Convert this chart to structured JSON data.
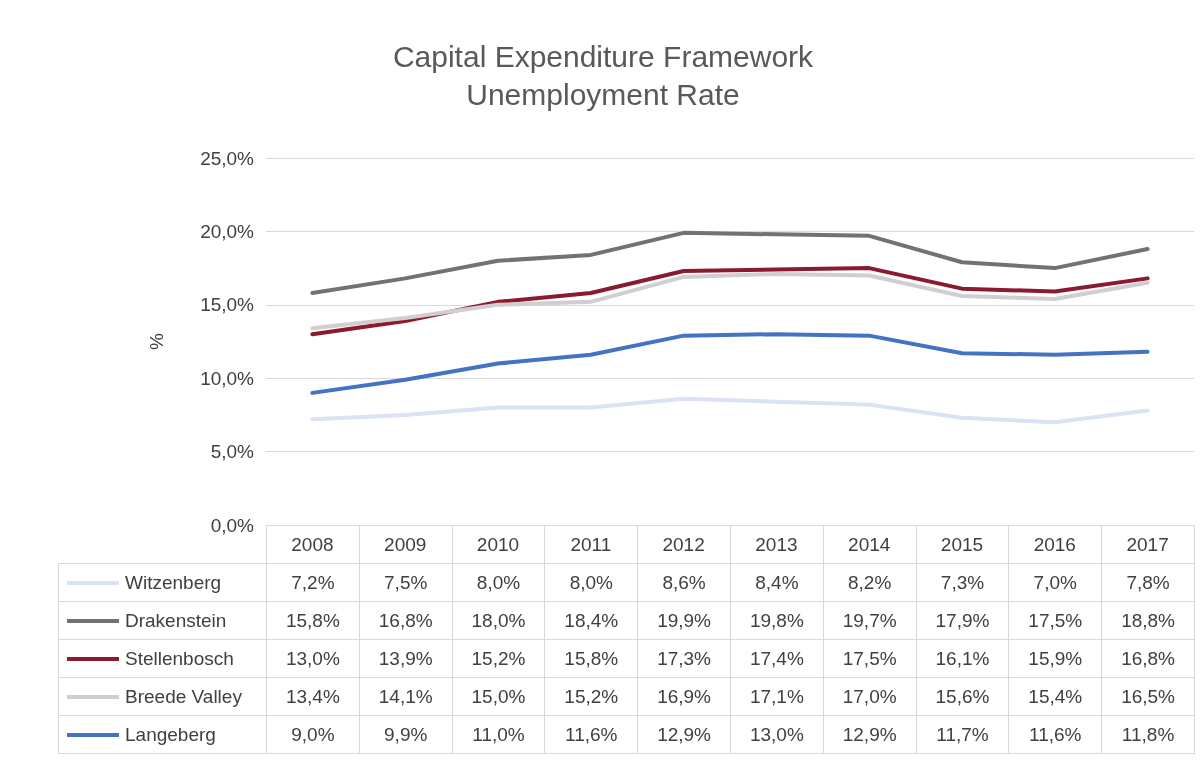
{
  "chart_data": {
    "type": "line",
    "title": "Capital Expenditure Framework",
    "subtitle": "Unemployment Rate",
    "ylabel": "%",
    "categories": [
      "2008",
      "2009",
      "2010",
      "2011",
      "2012",
      "2013",
      "2014",
      "2015",
      "2016",
      "2017"
    ],
    "ylim": [
      0,
      25
    ],
    "yticks": [
      {
        "value": 0,
        "label": "0,0%"
      },
      {
        "value": 5,
        "label": "5,0%"
      },
      {
        "value": 10,
        "label": "10,0%"
      },
      {
        "value": 15,
        "label": "15,0%"
      },
      {
        "value": 20,
        "label": "20,0%"
      },
      {
        "value": 25,
        "label": "25,0%"
      }
    ],
    "grid": "y",
    "legend": "bottom",
    "series": [
      {
        "name": "Witzenberg",
        "color": "#dae3f3",
        "values": [
          7.2,
          7.5,
          8.0,
          8.0,
          8.6,
          8.4,
          8.2,
          7.3,
          7.0,
          7.8
        ],
        "value_labels": [
          "7,2%",
          "7,5%",
          "8,0%",
          "8,0%",
          "8,6%",
          "8,4%",
          "8,2%",
          "7,3%",
          "7,0%",
          "7,8%"
        ]
      },
      {
        "name": "Drakenstein",
        "color": "#767171",
        "values": [
          15.8,
          16.8,
          18.0,
          18.4,
          19.9,
          19.8,
          19.7,
          17.9,
          17.5,
          18.8
        ],
        "value_labels": [
          "15,8%",
          "16,8%",
          "18,0%",
          "18,4%",
          "19,9%",
          "19,8%",
          "19,7%",
          "17,9%",
          "17,5%",
          "18,8%"
        ]
      },
      {
        "name": "Stellenbosch",
        "color": "#8b1a2e",
        "values": [
          13.0,
          13.9,
          15.2,
          15.8,
          17.3,
          17.4,
          17.5,
          16.1,
          15.9,
          16.8
        ],
        "value_labels": [
          "13,0%",
          "13,9%",
          "15,2%",
          "15,8%",
          "17,3%",
          "17,4%",
          "17,5%",
          "16,1%",
          "15,9%",
          "16,8%"
        ]
      },
      {
        "name": "Breede Valley",
        "color": "#d0cece",
        "values": [
          13.4,
          14.1,
          15.0,
          15.2,
          16.9,
          17.1,
          17.0,
          15.6,
          15.4,
          16.5
        ],
        "value_labels": [
          "13,4%",
          "14,1%",
          "15,0%",
          "15,2%",
          "16,9%",
          "17,1%",
          "17,0%",
          "15,6%",
          "15,4%",
          "16,5%"
        ]
      },
      {
        "name": "Langeberg",
        "color": "#4472c4",
        "values": [
          9.0,
          9.9,
          11.0,
          11.6,
          12.9,
          13.0,
          12.9,
          11.7,
          11.6,
          11.8
        ],
        "value_labels": [
          "9,0%",
          "9,9%",
          "11,0%",
          "11,6%",
          "12,9%",
          "13,0%",
          "12,9%",
          "11,7%",
          "11,6%",
          "11,8%"
        ]
      }
    ]
  }
}
